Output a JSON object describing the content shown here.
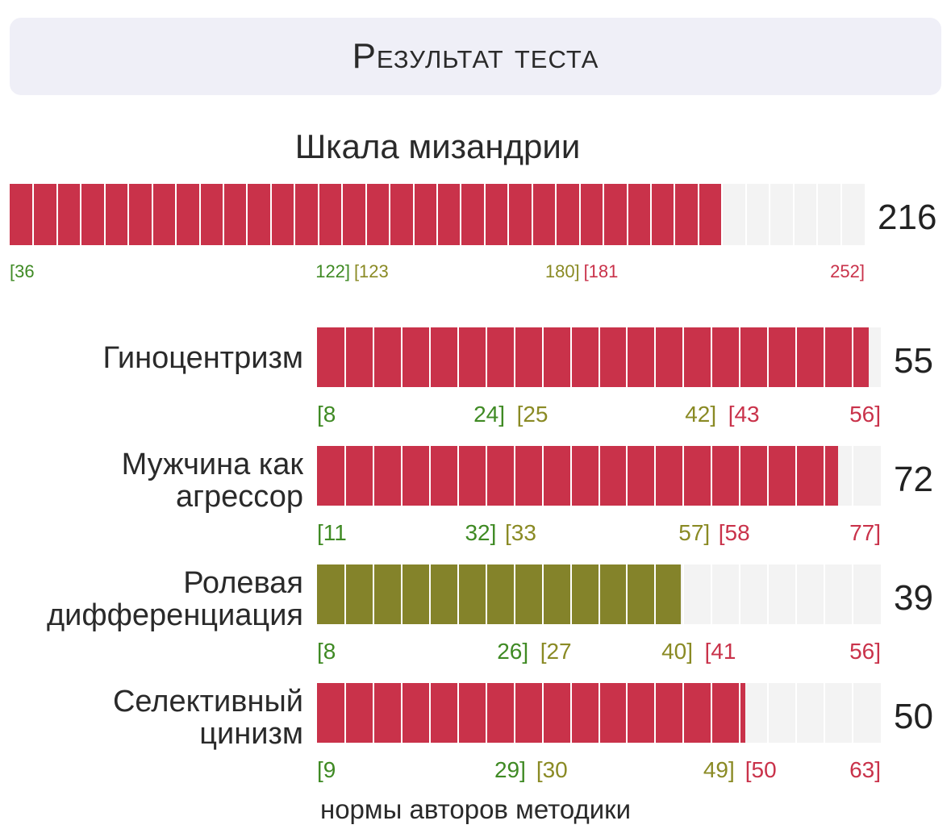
{
  "header": {
    "title": "Результат теста"
  },
  "chart_data": [
    {
      "type": "bar",
      "title": "Шкала мизандрии",
      "value": 216,
      "value_label": "216",
      "range": [
        36,
        252
      ],
      "zones": [
        {
          "from": 36,
          "to": 122,
          "labels": [
            "[36",
            "122]"
          ],
          "color": "#3f8a24"
        },
        {
          "from": 123,
          "to": 180,
          "labels": [
            "[123",
            "180]"
          ],
          "color": "#8a8a24"
        },
        {
          "from": 181,
          "to": 252,
          "labels": [
            "[181",
            "252]"
          ],
          "color": "#c9324a"
        }
      ],
      "bar_color": "#c9324a",
      "segments": 36
    },
    {
      "type": "bar",
      "title": "Гиноцентризм",
      "value": 55,
      "value_label": "55",
      "range": [
        8,
        56
      ],
      "zones": [
        {
          "from": 8,
          "to": 24,
          "labels": [
            "[8",
            "24]"
          ],
          "color": "#3f8a24"
        },
        {
          "from": 25,
          "to": 42,
          "labels": [
            "[25",
            "42]"
          ],
          "color": "#8a8a24"
        },
        {
          "from": 43,
          "to": 56,
          "labels": [
            "[43",
            "56]"
          ],
          "color": "#c9324a"
        }
      ],
      "bar_color": "#c9324a",
      "segments": 20
    },
    {
      "type": "bar",
      "title": "Мужчина как\nагрессор",
      "value": 72,
      "value_label": "72",
      "range": [
        11,
        77
      ],
      "zones": [
        {
          "from": 11,
          "to": 32,
          "labels": [
            "[11",
            "32]"
          ],
          "color": "#3f8a24"
        },
        {
          "from": 33,
          "to": 57,
          "labels": [
            "[33",
            "57]"
          ],
          "color": "#8a8a24"
        },
        {
          "from": 58,
          "to": 77,
          "labels": [
            "[58",
            "77]"
          ],
          "color": "#c9324a"
        }
      ],
      "bar_color": "#c9324a",
      "segments": 20
    },
    {
      "type": "bar",
      "title": "Ролевая\nдифференциация",
      "value": 39,
      "value_label": "39",
      "range": [
        8,
        56
      ],
      "zones": [
        {
          "from": 8,
          "to": 26,
          "labels": [
            "[8",
            "26]"
          ],
          "color": "#3f8a24"
        },
        {
          "from": 27,
          "to": 40,
          "labels": [
            "[27",
            "40]"
          ],
          "color": "#8a8a24"
        },
        {
          "from": 41,
          "to": 56,
          "labels": [
            "[41",
            "56]"
          ],
          "color": "#c9324a"
        }
      ],
      "bar_color": "#84832a",
      "segments": 20
    },
    {
      "type": "bar",
      "title": "Селективный\nцинизм",
      "value": 50,
      "value_label": "50",
      "range": [
        9,
        63
      ],
      "zones": [
        {
          "from": 9,
          "to": 29,
          "labels": [
            "[9",
            "29]"
          ],
          "color": "#3f8a24"
        },
        {
          "from": 30,
          "to": 49,
          "labels": [
            "[30",
            "49]"
          ],
          "color": "#8a8a24"
        },
        {
          "from": 50,
          "to": 63,
          "labels": [
            "[50",
            "63]"
          ],
          "color": "#c9324a"
        }
      ],
      "bar_color": "#c9324a",
      "segments": 20
    }
  ],
  "footer": {
    "note": "нормы авторов методики"
  }
}
